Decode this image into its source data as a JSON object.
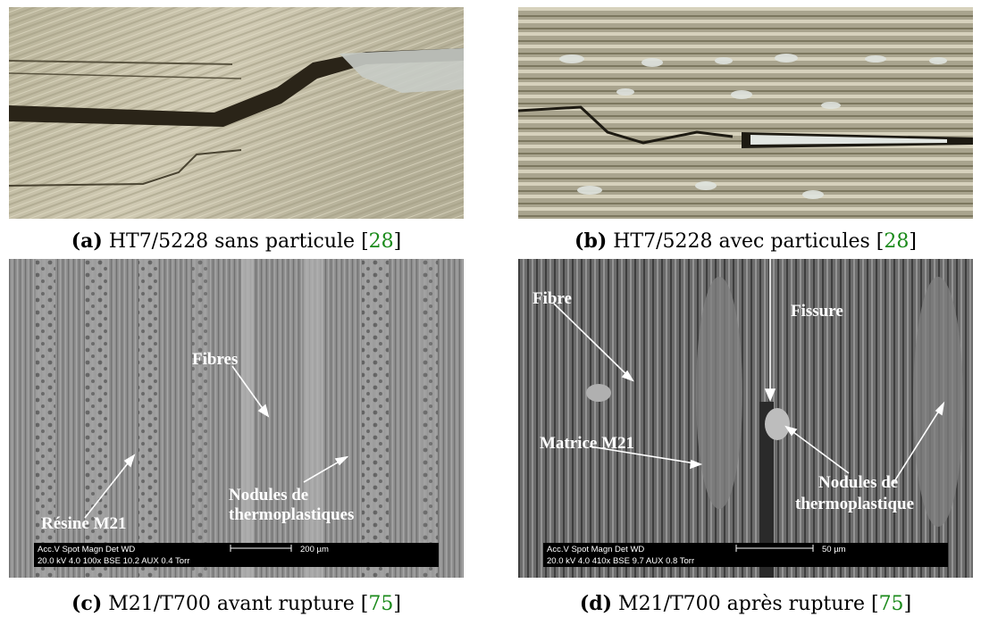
{
  "figures": [
    {
      "tag": "(a)",
      "text": "HT7/5228 sans particule",
      "cite": "28"
    },
    {
      "tag": "(b)",
      "text": "HT7/5228 avec particules",
      "cite": "28"
    },
    {
      "tag": "(c)",
      "text": "M21/T700 avant rupture",
      "cite": "75"
    },
    {
      "tag": "(d)",
      "text": "M21/T700 après rupture",
      "cite": "75"
    }
  ],
  "panel_c": {
    "labels": {
      "fibres": "Fibres",
      "resine": "Résine M21",
      "nodules1": "Nodules de",
      "nodules2": "thermoplastiques"
    },
    "sem_line1": "Acc.V   Spot Magn     Det   WD",
    "sem_line2": "20.0 kV  4.0    100x       BSE  10.2  AUX   0.4 Torr",
    "scale": "200 µm"
  },
  "panel_d": {
    "labels": {
      "fibre": "Fibre",
      "fissure": "Fissure",
      "matrice": "Matrice M21",
      "nodules1": "Nodules de",
      "nodules2": "thermoplastique"
    },
    "sem_line1": "Acc.V   Spot Magn     Det   WD",
    "sem_line2": "20.0 kV  4.0    410x       BSE  9.7   AUX   0.8 Torr",
    "scale": "50 µm"
  }
}
